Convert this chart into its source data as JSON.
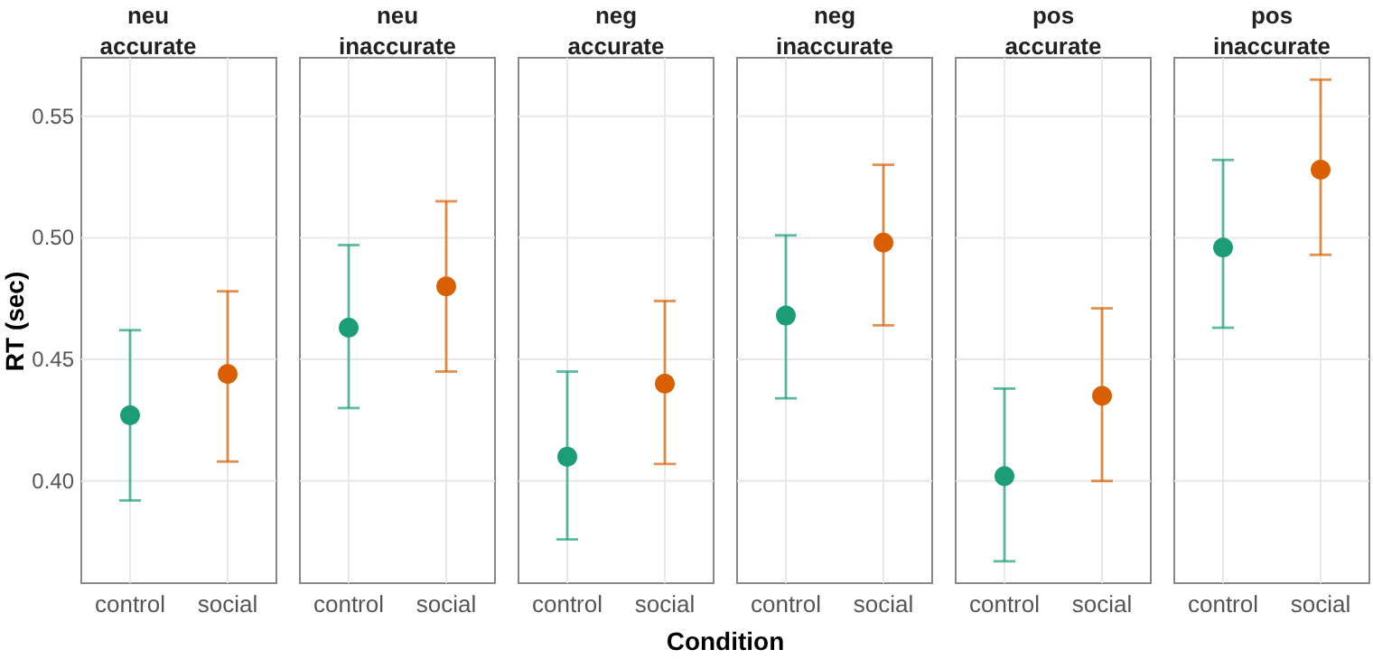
{
  "chart_data": [
    {
      "type": "scatter",
      "title": "neu\naccurate",
      "ylabel": "RT (sec)",
      "categories": [
        "control",
        "social"
      ],
      "values": [
        0.427,
        0.444
      ],
      "errors": [
        [
          0.392,
          0.462
        ],
        [
          0.408,
          0.478
        ]
      ],
      "colors": [
        "#1b9e77",
        "#d95f02"
      ],
      "ylim": [
        0.358,
        0.574
      ],
      "yticks": [
        {
          "value": 0.4,
          "label": "0.40"
        },
        0.45,
        {
          "value": 0.5,
          "label": "0.50"
        },
        0.55
      ],
      "grid": true,
      "marker": "circle"
    },
    {
      "type": "scatter",
      "title": "neu\ninaccurate",
      "categories": [
        "control",
        "social"
      ],
      "values": [
        0.463,
        0.48
      ],
      "errors": [
        [
          0.43,
          0.497
        ],
        [
          0.445,
          0.515
        ]
      ],
      "colors": [
        "#1b9e77",
        "#d95f02"
      ],
      "ylim": [
        0.358,
        0.574
      ],
      "yticks": [
        0.4,
        0.45,
        0.5,
        0.55
      ],
      "grid": true,
      "marker": "circle",
      "tick_labels": "x"
    },
    {
      "type": "scatter",
      "title": "neg\naccurate",
      "categories": [
        "control",
        "social"
      ],
      "values": [
        0.41,
        0.44
      ],
      "errors": [
        [
          0.376,
          0.445
        ],
        [
          0.407,
          0.474
        ]
      ],
      "colors": [
        "#1b9e77",
        "#d95f02"
      ],
      "ylim": [
        0.358,
        0.574
      ],
      "yticks": [
        0.4,
        0.45,
        0.5,
        0.55
      ],
      "grid": true,
      "marker": "circle",
      "tick_labels": "x"
    },
    {
      "type": "scatter",
      "title": "neg\ninaccurate",
      "xlabel": "Condition",
      "categories": [
        "control",
        "social"
      ],
      "values": [
        0.468,
        0.498
      ],
      "errors": [
        [
          0.434,
          0.501
        ],
        [
          0.464,
          0.53
        ]
      ],
      "colors": [
        "#1b9e77",
        "#d95f02"
      ],
      "ylim": [
        0.358,
        0.574
      ],
      "yticks": [
        0.4,
        0.45,
        0.5,
        0.55
      ],
      "grid": true,
      "marker": "circle",
      "tick_labels": "x"
    },
    {
      "type": "scatter",
      "title": "pos\naccurate",
      "categories": [
        "control",
        "social"
      ],
      "values": [
        0.402,
        0.435
      ],
      "errors": [
        [
          0.367,
          0.438
        ],
        [
          0.4,
          0.471
        ]
      ],
      "colors": [
        "#1b9e77",
        "#d95f02"
      ],
      "ylim": [
        0.358,
        0.574
      ],
      "yticks": [
        0.4,
        0.45,
        0.5,
        0.55
      ],
      "grid": true,
      "marker": "circle",
      "tick_labels": "x"
    },
    {
      "type": "scatter",
      "title": "pos\ninaccurate",
      "categories": [
        "control",
        "social"
      ],
      "values": [
        0.496,
        0.528
      ],
      "errors": [
        [
          0.463,
          0.532
        ],
        [
          0.493,
          0.565
        ]
      ],
      "colors": [
        "#1b9e77",
        "#d95f02"
      ],
      "ylim": [
        0.358,
        0.574
      ],
      "yticks": [
        0.4,
        0.45,
        0.5,
        0.55
      ],
      "grid": true,
      "marker": "circle",
      "tick_labels": "x"
    }
  ]
}
